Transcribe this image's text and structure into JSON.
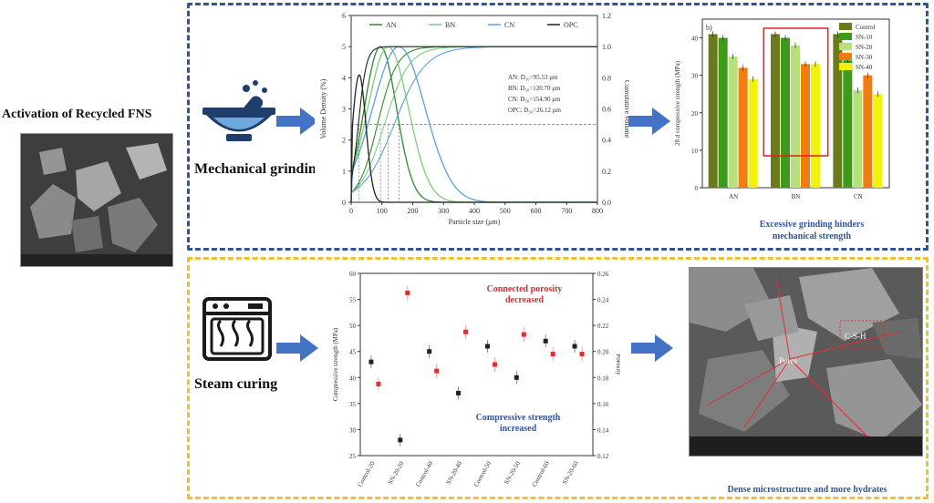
{
  "left": {
    "title": "Activation of Recycled FNS"
  },
  "top": {
    "method_label": "Mechanical grinding",
    "caption_line1": "Excessive grinding hinders",
    "caption_line2": "mechanical strength",
    "psd_chart": {
      "type": "line",
      "legend": [
        "AN",
        "BN",
        "CN",
        "OPC"
      ],
      "ylabel_left": "Volume Density (%)",
      "ylabel_right": "Cumulative volume",
      "xlabel": "Particle size (μm)",
      "x_ticks": [
        0,
        100,
        200,
        300,
        400,
        500,
        600,
        700,
        800
      ],
      "y_ticks_left": [
        0,
        1,
        2,
        3,
        4,
        5,
        6
      ],
      "y_ticks_right": [
        "0.0",
        "0.2",
        "0.4",
        "0.6",
        "0.8",
        "1.0",
        "1.2"
      ],
      "annotations": [
        "AN: D₅₀=95.53 μm",
        "BN: D₅₀=120.70 μm",
        "CN: D₅₀=154.90 μm",
        "OPC: D₅₀=26.12 μm"
      ],
      "density_peaks": [
        {
          "name": "AN",
          "peak_x": 95,
          "peak_y": 5.0,
          "color": "#2e8b2e"
        },
        {
          "name": "BN",
          "peak_x": 120,
          "peak_y": 5.0,
          "color": "#7ccd7c"
        },
        {
          "name": "CN",
          "peak_x": 155,
          "peak_y": 5.0,
          "color": "#5aa0dc"
        },
        {
          "name": "OPC",
          "peak_x": 26,
          "peak_y": 4.1,
          "color": "#222222"
        }
      ],
      "xlim": [
        0,
        800
      ],
      "ylim_left": [
        0,
        6
      ]
    },
    "strength_chart": {
      "type": "bar",
      "panel_label": "b)",
      "ylabel": "28 d compressive strength (MPa)",
      "y_ticks": [
        0,
        10,
        20,
        30,
        40
      ],
      "ylim": [
        0,
        45
      ],
      "categories": [
        "AN",
        "BN",
        "CN"
      ],
      "series": [
        {
          "name": "Control",
          "color": "#6b7a1a",
          "values": [
            41,
            41,
            41
          ]
        },
        {
          "name": "SN-10",
          "color": "#3d9a1a",
          "values": [
            40,
            40,
            34
          ]
        },
        {
          "name": "SN-20",
          "color": "#b6e07a",
          "values": [
            35,
            38,
            26
          ]
        },
        {
          "name": "SN-30",
          "color": "#f07d10",
          "values": [
            32,
            33,
            30
          ]
        },
        {
          "name": "SN-40",
          "color": "#f2f20a",
          "values": [
            29,
            33,
            25
          ]
        }
      ]
    }
  },
  "bottom": {
    "method_label": "Steam curing",
    "anno_red_line1": "Connected porosity",
    "anno_red_line2": "decreased",
    "anno_blue_line1": "Compressive strength",
    "anno_blue_line2": "increased",
    "caption": "Dense microstructure and more hydrates",
    "dual_chart": {
      "type": "scatter",
      "ylabel_left": "Compressive strength (MPa)",
      "ylabel_right": "Porosity",
      "categories": [
        "Control-20",
        "SN-20-20",
        "Control-40",
        "SN-20-40",
        "Control-50",
        "SN-20-50",
        "Control-60",
        "SN-20-60"
      ],
      "y_ticks_left": [
        25,
        30,
        35,
        40,
        45,
        50,
        55,
        60
      ],
      "y_ticks_right": [
        "0.12",
        "0.14",
        "0.16",
        "0.18",
        "0.20",
        "0.22",
        "0.24",
        "0.26"
      ],
      "ylim_left": [
        25,
        60
      ],
      "ylim_right": [
        0.12,
        0.26
      ],
      "strength": [
        43.0,
        28.0,
        45.0,
        37.0,
        46.0,
        40.0,
        47.0,
        46.0
      ],
      "porosity": [
        0.175,
        0.245,
        0.185,
        0.215,
        0.19,
        0.213,
        0.198,
        0.198
      ]
    },
    "sem_labels": [
      "C-S-H",
      "Pores"
    ]
  }
}
